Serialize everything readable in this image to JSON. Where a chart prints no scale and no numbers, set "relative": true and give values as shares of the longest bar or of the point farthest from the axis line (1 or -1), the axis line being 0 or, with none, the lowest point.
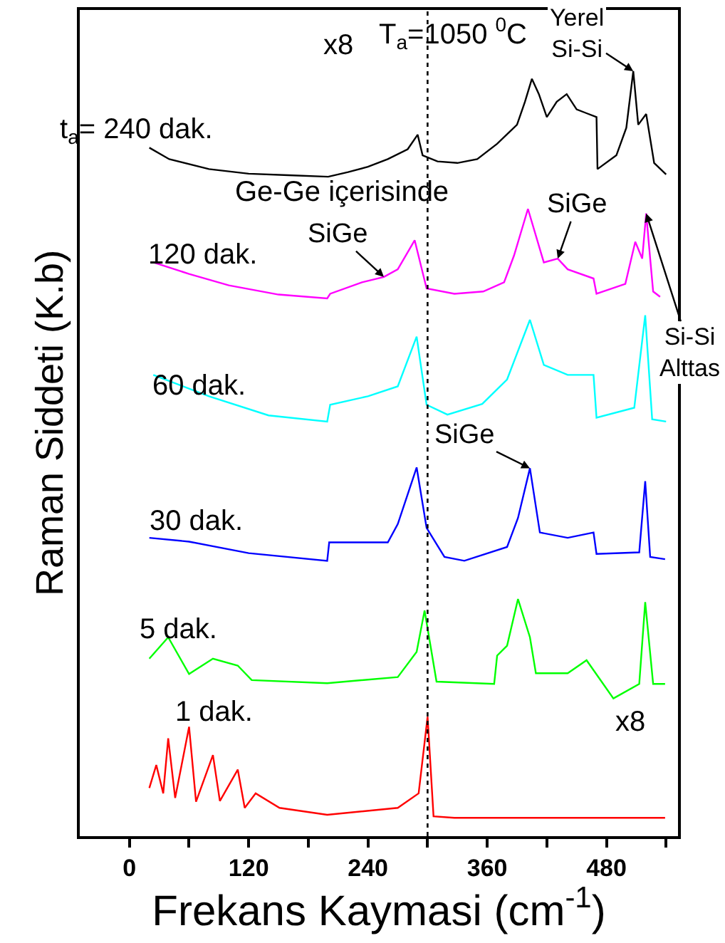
{
  "chart_data": {
    "type": "line",
    "relative": true,
    "xlabel": "Frekans Kaymasi (cm$^{-1}$)",
    "ylabel": "Raman Siddeti (K.b)",
    "xlim": [
      -50,
      552
    ],
    "xticks": [
      0,
      {
        "value": 60,
        "label": null
      },
      120,
      {
        "value": 180,
        "label": null
      },
      240,
      {
        "value": 300,
        "label": null
      },
      360,
      {
        "value": 420,
        "label": null
      },
      480,
      {
        "value": 540,
        "label": null
      }
    ],
    "tick_labels": "x",
    "legend": false,
    "marker": "none",
    "line_style": "solid",
    "ref_lines": [
      {
        "axis": "x",
        "value": 300,
        "color": "#000000",
        "line_style": "dotted"
      }
    ],
    "series": [
      {
        "name": "t$_{a}$= 240 dak.",
        "color": "#000000",
        "x": [
          20,
          40,
          80,
          120,
          160,
          200,
          220,
          240,
          260,
          280,
          290,
          295,
          310,
          330,
          350,
          370,
          390,
          398,
          405,
          412,
          420,
          430,
          440,
          450,
          460,
          470,
          471,
          490,
          500,
          507,
          512,
          520,
          528,
          540
        ],
        "values": [
          0.9,
          0.885,
          0.872,
          0.866,
          0.864,
          0.862,
          0.868,
          0.875,
          0.885,
          0.898,
          0.917,
          0.89,
          0.882,
          0.88,
          0.885,
          0.905,
          0.93,
          0.96,
          0.99,
          0.97,
          0.94,
          0.96,
          0.97,
          0.95,
          0.945,
          0.94,
          0.872,
          0.89,
          0.926,
          1.0,
          0.93,
          0.944,
          0.88,
          0.865
        ]
      },
      {
        "name": "120 dak.",
        "color": "#ff00ff",
        "x": [
          24,
          60,
          100,
          150,
          199,
          202,
          234,
          256,
          270,
          287,
          299,
          327,
          356,
          377,
          387,
          401,
          417,
          431,
          441,
          467,
          470,
          499,
          509,
          516,
          520,
          524,
          527,
          534
        ],
        "values": [
          0.75,
          0.735,
          0.72,
          0.708,
          0.703,
          0.709,
          0.724,
          0.731,
          0.741,
          0.779,
          0.716,
          0.709,
          0.712,
          0.724,
          0.759,
          0.82,
          0.75,
          0.755,
          0.741,
          0.729,
          0.709,
          0.722,
          0.777,
          0.755,
          0.814,
          0.755,
          0.712,
          0.705
        ]
      },
      {
        "name": "60 dak.",
        "color": "#00ffff",
        "x": [
          24,
          80,
          140,
          199,
          202,
          240,
          270,
          289,
          299,
          320,
          355,
          380,
          403,
          417,
          441,
          467,
          470,
          508,
          519,
          526,
          540
        ],
        "values": [
          0.603,
          0.575,
          0.55,
          0.542,
          0.564,
          0.575,
          0.588,
          0.653,
          0.564,
          0.551,
          0.565,
          0.597,
          0.675,
          0.616,
          0.603,
          0.603,
          0.547,
          0.56,
          0.681,
          0.545,
          0.542
        ]
      },
      {
        "name": "30 dak.",
        "color": "#0000ff",
        "x": [
          20,
          60,
          120,
          199,
          201,
          260,
          270,
          289,
          299,
          317,
          337,
          380,
          391,
          403,
          413,
          441,
          467,
          470,
          513,
          519,
          524,
          539
        ],
        "values": [
          0.39,
          0.385,
          0.37,
          0.36,
          0.384,
          0.384,
          0.408,
          0.482,
          0.403,
          0.365,
          0.36,
          0.378,
          0.416,
          0.481,
          0.397,
          0.39,
          0.397,
          0.369,
          0.371,
          0.464,
          0.365,
          0.362
        ]
      },
      {
        "name": "5 dak.",
        "color": "#00ff00",
        "x": [
          20,
          39,
          60,
          84,
          109,
          123,
          199,
          270,
          289,
          297,
          309,
          367,
          370,
          380,
          391,
          403,
          409,
          441,
          460,
          487,
          513,
          519,
          527,
          539
        ],
        "values": [
          0.232,
          0.26,
          0.212,
          0.232,
          0.223,
          0.204,
          0.2,
          0.208,
          0.241,
          0.295,
          0.202,
          0.199,
          0.236,
          0.249,
          0.31,
          0.26,
          0.213,
          0.213,
          0.23,
          0.18,
          0.199,
          0.306,
          0.199,
          0.199
        ]
      },
      {
        "name": "1 dak.",
        "color": "#ff0000",
        "x": [
          20,
          27,
          34,
          39,
          46,
          60,
          67,
          84,
          91,
          109,
          116,
          127,
          151,
          199,
          270,
          291,
          300,
          306,
          327,
          413,
          539
        ],
        "values": [
          0.063,
          0.093,
          0.056,
          0.128,
          0.05,
          0.143,
          0.045,
          0.106,
          0.046,
          0.087,
          0.037,
          0.056,
          0.037,
          0.028,
          0.037,
          0.056,
          0.156,
          0.026,
          0.024,
          0.024,
          0.024
        ]
      }
    ],
    "annotations": [
      "T$_{a}$=1050 $^{0}$C",
      {
        "text": "Yerel\nSi-Si",
        "x": 507,
        "y": 1.0
      },
      "x8",
      "Ge-Ge içerisinde",
      {
        "text": "SiGe",
        "x": 256,
        "y": 0.731
      },
      {
        "text": "SiGe",
        "x": 431,
        "y": 0.755
      },
      {
        "text": "Si-Si\nAlttas",
        "x": 520,
        "y": 0.814
      },
      {
        "text": "SiGe",
        "x": 403,
        "y": 0.481
      },
      "x8"
    ]
  }
}
